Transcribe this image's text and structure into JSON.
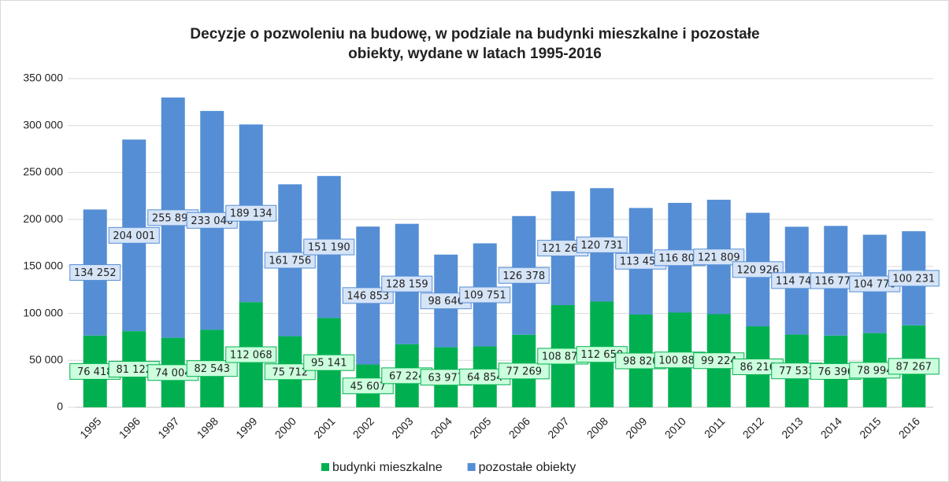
{
  "chart_data": {
    "type": "bar",
    "stacked": true,
    "title": [
      "Decyzje o pozwoleniu na budowę,  w podziale na budynki mieszkalne i pozostałe",
      "obiekty, wydane w latach 1995-2016"
    ],
    "categories": [
      "1995",
      "1996",
      "1997",
      "1998",
      "1999",
      "2000",
      "2001",
      "2002",
      "2003",
      "2004",
      "2005",
      "2006",
      "2007",
      "2008",
      "2009",
      "2010",
      "2011",
      "2012",
      "2013",
      "2014",
      "2015",
      "2016"
    ],
    "series": [
      {
        "name": "budynki mieszkalne",
        "color": "#00b050",
        "label_fill": "#ccffdd",
        "values": [
          76418,
          81122,
          74004,
          82543,
          112068,
          75712,
          95141,
          45607,
          67224,
          63977,
          64854,
          77269,
          108870,
          112650,
          98820,
          100881,
          99224,
          86216,
          77533,
          76396,
          78994,
          87267
        ],
        "value_labels": [
          "76 418",
          "81 122",
          "74 004",
          "82 543",
          "112 068",
          "75 712",
          "95 141",
          "45 607",
          "67 224",
          "63 977",
          "64 854",
          "77 269",
          "108 870",
          "112 650",
          "98 820",
          "100 881",
          "99 224",
          "86 216",
          "77 533",
          "76 396",
          "78 994",
          "87 267"
        ]
      },
      {
        "name": "pozostałe obiekty",
        "color": "#558ed5",
        "label_fill": "#d6e4f7",
        "values": [
          134252,
          204001,
          255890,
          233040,
          189134,
          161756,
          151190,
          146853,
          128159,
          98646,
          109751,
          126378,
          121260,
          120731,
          113450,
          116800,
          121809,
          120926,
          114740,
          116770,
          104770,
          100231
        ],
        "value_labels": [
          "134 252",
          "204 001",
          "255 890",
          "233 040",
          "189 134",
          "161 756",
          "151 190",
          "146 853",
          "128 159",
          "98 646",
          "109 751",
          "126 378",
          "121 260",
          "120 731",
          "113 450",
          "116 800",
          "121 809",
          "120 926",
          "114 740",
          "116 770",
          "104 770",
          "100 231"
        ]
      }
    ],
    "ylim": [
      0,
      350000
    ],
    "yticks": [
      0,
      {
        "value": 50000,
        "label": "50 000"
      },
      {
        "value": 100000,
        "label": "100 000"
      },
      {
        "value": 150000,
        "label": "150 000"
      },
      {
        "value": 200000,
        "label": "200 000"
      },
      {
        "value": 250000,
        "label": "250 000"
      },
      {
        "value": 300000,
        "label": "300 000"
      },
      {
        "value": 350000,
        "label": "350 000"
      }
    ],
    "grid": true,
    "legend": "bottom"
  }
}
